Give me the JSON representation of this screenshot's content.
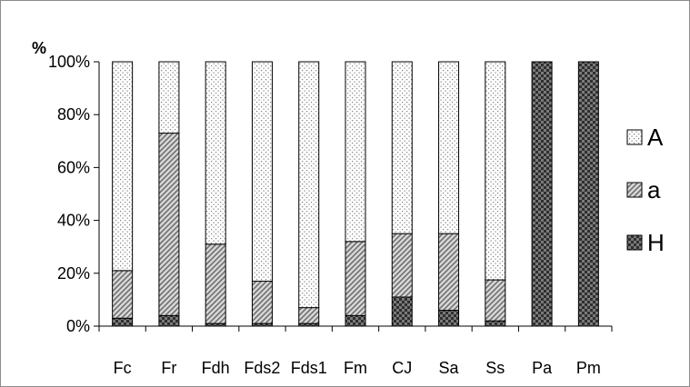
{
  "chart_data": {
    "type": "bar",
    "stacked": true,
    "percent": true,
    "y_unit_label": "%",
    "ylim": [
      0,
      100
    ],
    "y_ticks": [
      "0%",
      "20%",
      "40%",
      "60%",
      "80%",
      "100%"
    ],
    "categories": [
      "Fc",
      "Fr",
      "Fdh",
      "Fds2",
      "Fds1",
      "Fm",
      "CJ",
      "Sa",
      "Ss",
      "Pa",
      "Pm"
    ],
    "series": [
      {
        "name": "H",
        "pattern": "checker",
        "values": [
          3,
          4,
          1,
          1,
          1,
          4,
          11,
          6,
          2,
          100,
          100
        ]
      },
      {
        "name": "a",
        "pattern": "diagonal",
        "values": [
          18,
          69,
          30,
          16,
          6,
          28,
          24,
          29,
          15.5,
          0,
          0
        ]
      },
      {
        "name": "A",
        "pattern": "dots",
        "values": [
          79,
          27,
          69,
          83,
          93,
          68,
          65,
          65,
          82.5,
          0,
          0
        ]
      }
    ],
    "legend": {
      "placement": "right",
      "order": [
        "A",
        "a",
        "H"
      ]
    },
    "grid": false,
    "title": "",
    "xlabel": "",
    "ylabel": ""
  }
}
